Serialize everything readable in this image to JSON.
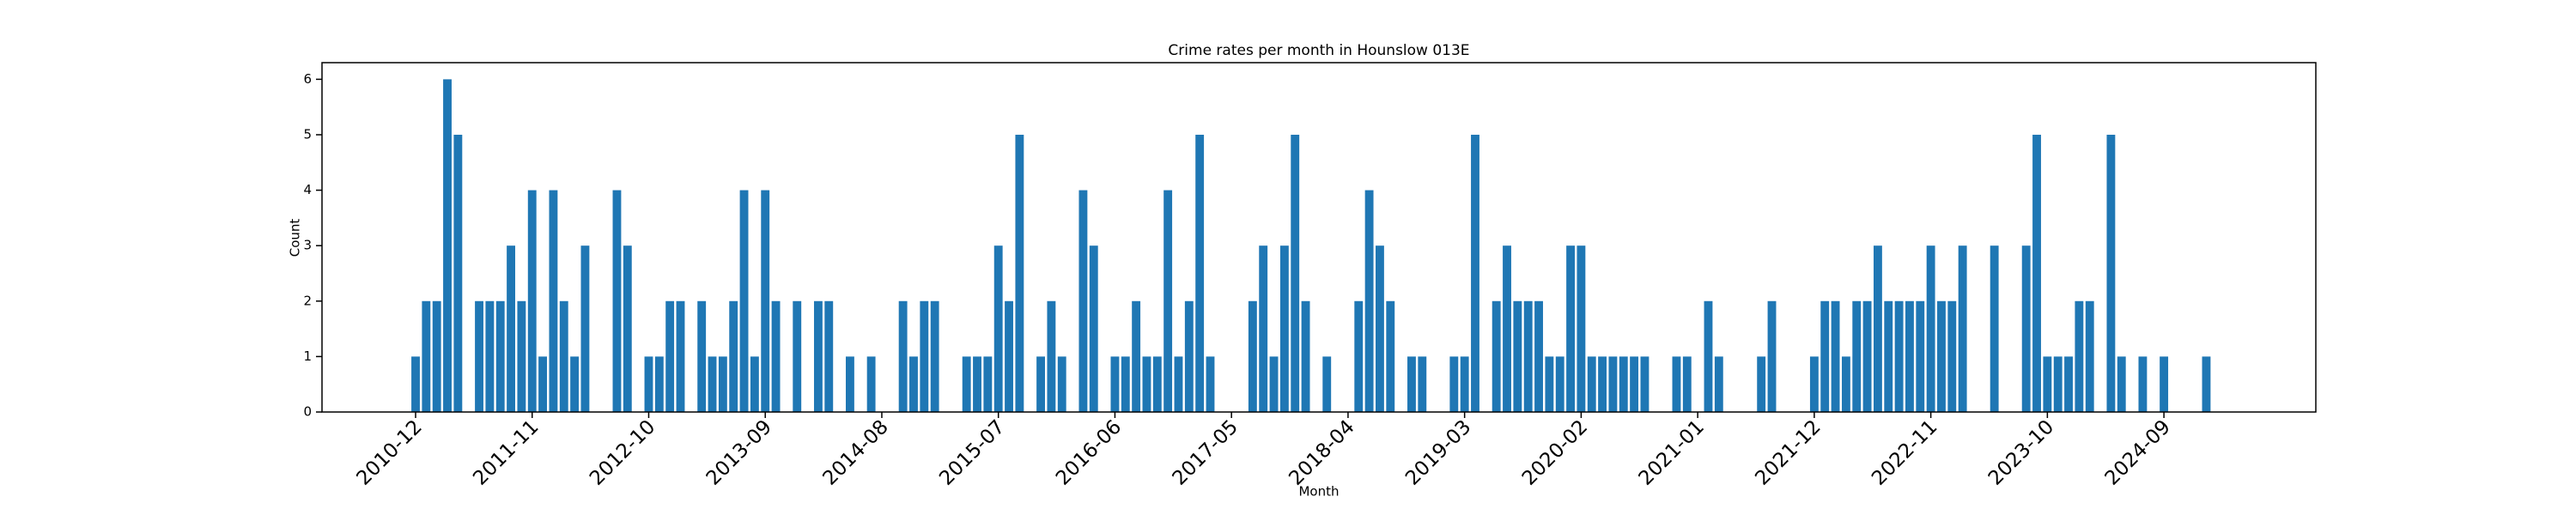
{
  "chart_data": {
    "type": "bar",
    "title": "Crime rates per month in Hounslow 013E",
    "x_label": "Month",
    "y_label": "Count",
    "color": "#1f77b4",
    "categories": [
      "2010-12",
      null,
      null,
      null,
      null,
      null,
      null,
      null,
      null,
      null,
      null,
      "2011-11",
      null,
      null,
      null,
      null,
      null,
      null,
      null,
      null,
      null,
      null,
      "2012-10",
      null,
      null,
      null,
      null,
      null,
      null,
      null,
      null,
      null,
      null,
      "2013-09",
      null,
      null,
      null,
      null,
      null,
      null,
      null,
      null,
      null,
      null,
      "2014-08",
      null,
      null,
      null,
      null,
      null,
      null,
      null,
      null,
      null,
      null,
      "2015-07",
      null,
      null,
      null,
      null,
      null,
      null,
      null,
      null,
      null,
      null,
      "2016-06",
      null,
      null,
      null,
      null,
      null,
      null,
      null,
      null,
      null,
      null,
      "2017-05",
      null,
      null,
      null,
      null,
      null,
      null,
      null,
      null,
      null,
      null,
      "2018-04",
      null,
      null,
      null,
      null,
      null,
      null,
      null,
      null,
      null,
      null,
      "2019-03",
      null,
      null,
      null,
      null,
      null,
      null,
      null,
      null,
      null,
      null,
      "2020-02",
      null,
      null,
      null,
      null,
      null,
      null,
      null,
      null,
      null,
      null,
      "2021-01",
      null,
      null,
      null,
      null,
      null,
      null,
      null,
      null,
      null,
      null,
      "2021-12",
      null,
      null,
      null,
      null,
      null,
      null,
      null,
      null,
      null,
      null,
      "2022-11",
      null,
      null,
      null,
      null,
      null,
      null,
      null,
      null,
      null,
      null,
      "2023-10",
      null,
      null,
      null,
      null,
      null,
      null,
      null,
      null,
      null,
      null,
      "2024-09",
      null,
      null,
      null,
      null
    ],
    "values": [
      1,
      2,
      2,
      6,
      5,
      0,
      2,
      2,
      2,
      3,
      2,
      4,
      1,
      4,
      2,
      1,
      3,
      0,
      0,
      4,
      3,
      0,
      1,
      1,
      2,
      2,
      0,
      2,
      1,
      1,
      2,
      4,
      1,
      4,
      2,
      0,
      2,
      0,
      2,
      2,
      0,
      1,
      0,
      1,
      0,
      0,
      2,
      1,
      2,
      2,
      0,
      0,
      1,
      1,
      1,
      3,
      2,
      5,
      0,
      1,
      2,
      1,
      0,
      4,
      3,
      0,
      1,
      1,
      2,
      1,
      1,
      4,
      1,
      2,
      5,
      1,
      0,
      0,
      0,
      2,
      3,
      1,
      3,
      5,
      2,
      0,
      1,
      0,
      0,
      2,
      4,
      3,
      2,
      0,
      1,
      1,
      0,
      0,
      1,
      1,
      5,
      0,
      2,
      3,
      2,
      2,
      2,
      1,
      1,
      3,
      3,
      1,
      1,
      1,
      1,
      1,
      1,
      0,
      0,
      1,
      1,
      0,
      2,
      1,
      0,
      0,
      0,
      1,
      2,
      0,
      0,
      0,
      1,
      2,
      2,
      1,
      2,
      2,
      3,
      2,
      2,
      2,
      2,
      3,
      2,
      2,
      3,
      0,
      0,
      3,
      0,
      0,
      3,
      5,
      1,
      1,
      1,
      2,
      2,
      0,
      5,
      1,
      0,
      1,
      0,
      1,
      0,
      0,
      0,
      1
    ],
    "ylim": [
      0,
      6.3
    ],
    "yticks": [
      0,
      1,
      2,
      3,
      4,
      5,
      6
    ]
  }
}
